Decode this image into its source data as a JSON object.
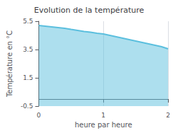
{
  "chart_data": {
    "type": "area",
    "title": "Evolution de la température",
    "xlabel": "heure par heure",
    "ylabel": "Température en °C",
    "x": [
      0.0,
      0.1,
      0.2,
      0.3,
      0.4,
      0.5,
      0.6,
      0.7,
      0.8,
      0.9,
      1.0,
      1.1,
      1.2,
      1.3,
      1.4,
      1.5,
      1.6,
      1.7,
      1.8,
      1.9,
      2.0
    ],
    "values": [
      5.2,
      5.15,
      5.1,
      5.05,
      5.0,
      4.92,
      4.85,
      4.78,
      4.72,
      4.65,
      4.6,
      4.5,
      4.4,
      4.3,
      4.2,
      4.1,
      4.0,
      3.9,
      3.8,
      3.7,
      3.55
    ],
    "color": "#5bbfde",
    "xlim": [
      0,
      2
    ],
    "ylim": [
      -0.5,
      5.5
    ],
    "xticks": [
      0,
      1,
      2
    ],
    "yticks": [
      -0.5,
      1.5,
      3.5,
      5.5
    ],
    "grid": "x"
  }
}
